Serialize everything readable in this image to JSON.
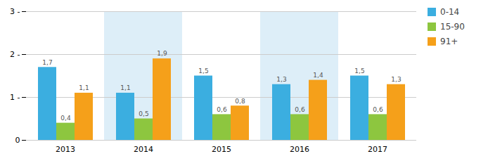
{
  "chart_data": {
    "type": "bar",
    "categories": [
      "2013",
      "2014",
      "2015",
      "2016",
      "2017"
    ],
    "series": [
      {
        "name": "0-14",
        "color": "#3baee0",
        "values": [
          1.7,
          1.1,
          1.5,
          1.3,
          1.5
        ],
        "value_labels": [
          "1,7",
          "1,1",
          "1,5",
          "1,3",
          "1,5"
        ]
      },
      {
        "name": "15-90",
        "color": "#8dc63f",
        "values": [
          0.4,
          0.5,
          0.6,
          0.6,
          0.6
        ],
        "value_labels": [
          "0,4",
          "0,5",
          "0,6",
          "0,6",
          "0,6"
        ]
      },
      {
        "name": "91+",
        "color": "#f5a01a",
        "values": [
          1.1,
          1.9,
          0.8,
          1.4,
          1.3
        ],
        "value_labels": [
          "1,1",
          "1,9",
          "0,8",
          "1,4",
          "1,3"
        ]
      }
    ],
    "ylim": [
      0,
      3
    ],
    "yticks": [
      0,
      {
        "value": 1,
        "label": "1 -"
      },
      {
        "value": 2,
        "label": "2 -"
      },
      {
        "value": 3,
        "label": "3 -"
      }
    ],
    "grid": true,
    "legend": "right",
    "data_labels": true
  }
}
